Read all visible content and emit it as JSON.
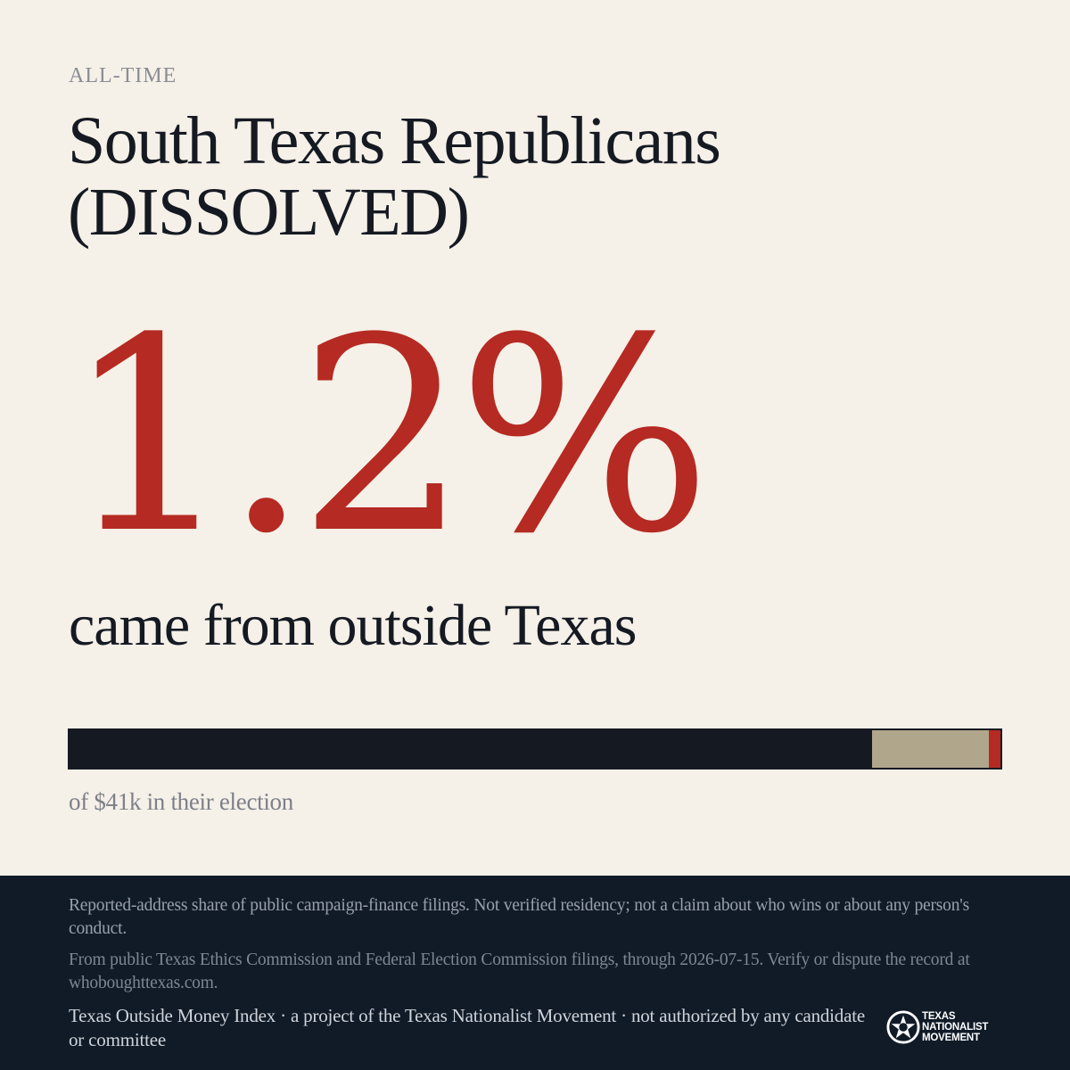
{
  "header": {
    "eyebrow": "ALL-TIME",
    "title": "South Texas Republicans (DISSOLVED)"
  },
  "stat": {
    "value": "1.2%",
    "caption": "came from outside Texas"
  },
  "bar": {
    "segments": [
      {
        "share": 0.862,
        "color": "#151a22"
      },
      {
        "share": 0.126,
        "color": "#b0a68b"
      },
      {
        "share": 0.012,
        "color": "#b52a22"
      }
    ],
    "label": "of $41k in their election"
  },
  "footer": {
    "note1": "Reported-address share of public campaign-finance filings. Not verified residency; not a claim about who wins or about any person's conduct.",
    "note2": "From public Texas Ethics Commission and Federal Election Commission filings, through 2026-07-15. Verify or dispute the record at whoboughttexas.com.",
    "credit": "Texas Outside Money Index · a project of the Texas Nationalist Movement · not authorized by any candidate or committee",
    "logo": {
      "icon": "tnm-star-seal-icon",
      "lines": [
        "TEXAS",
        "NATIONALIST",
        "MOVEMENT"
      ]
    }
  },
  "colors": {
    "background": "#f5f0e8",
    "accent": "#b52a22",
    "ink": "#151a22",
    "footer": "#111b28"
  }
}
